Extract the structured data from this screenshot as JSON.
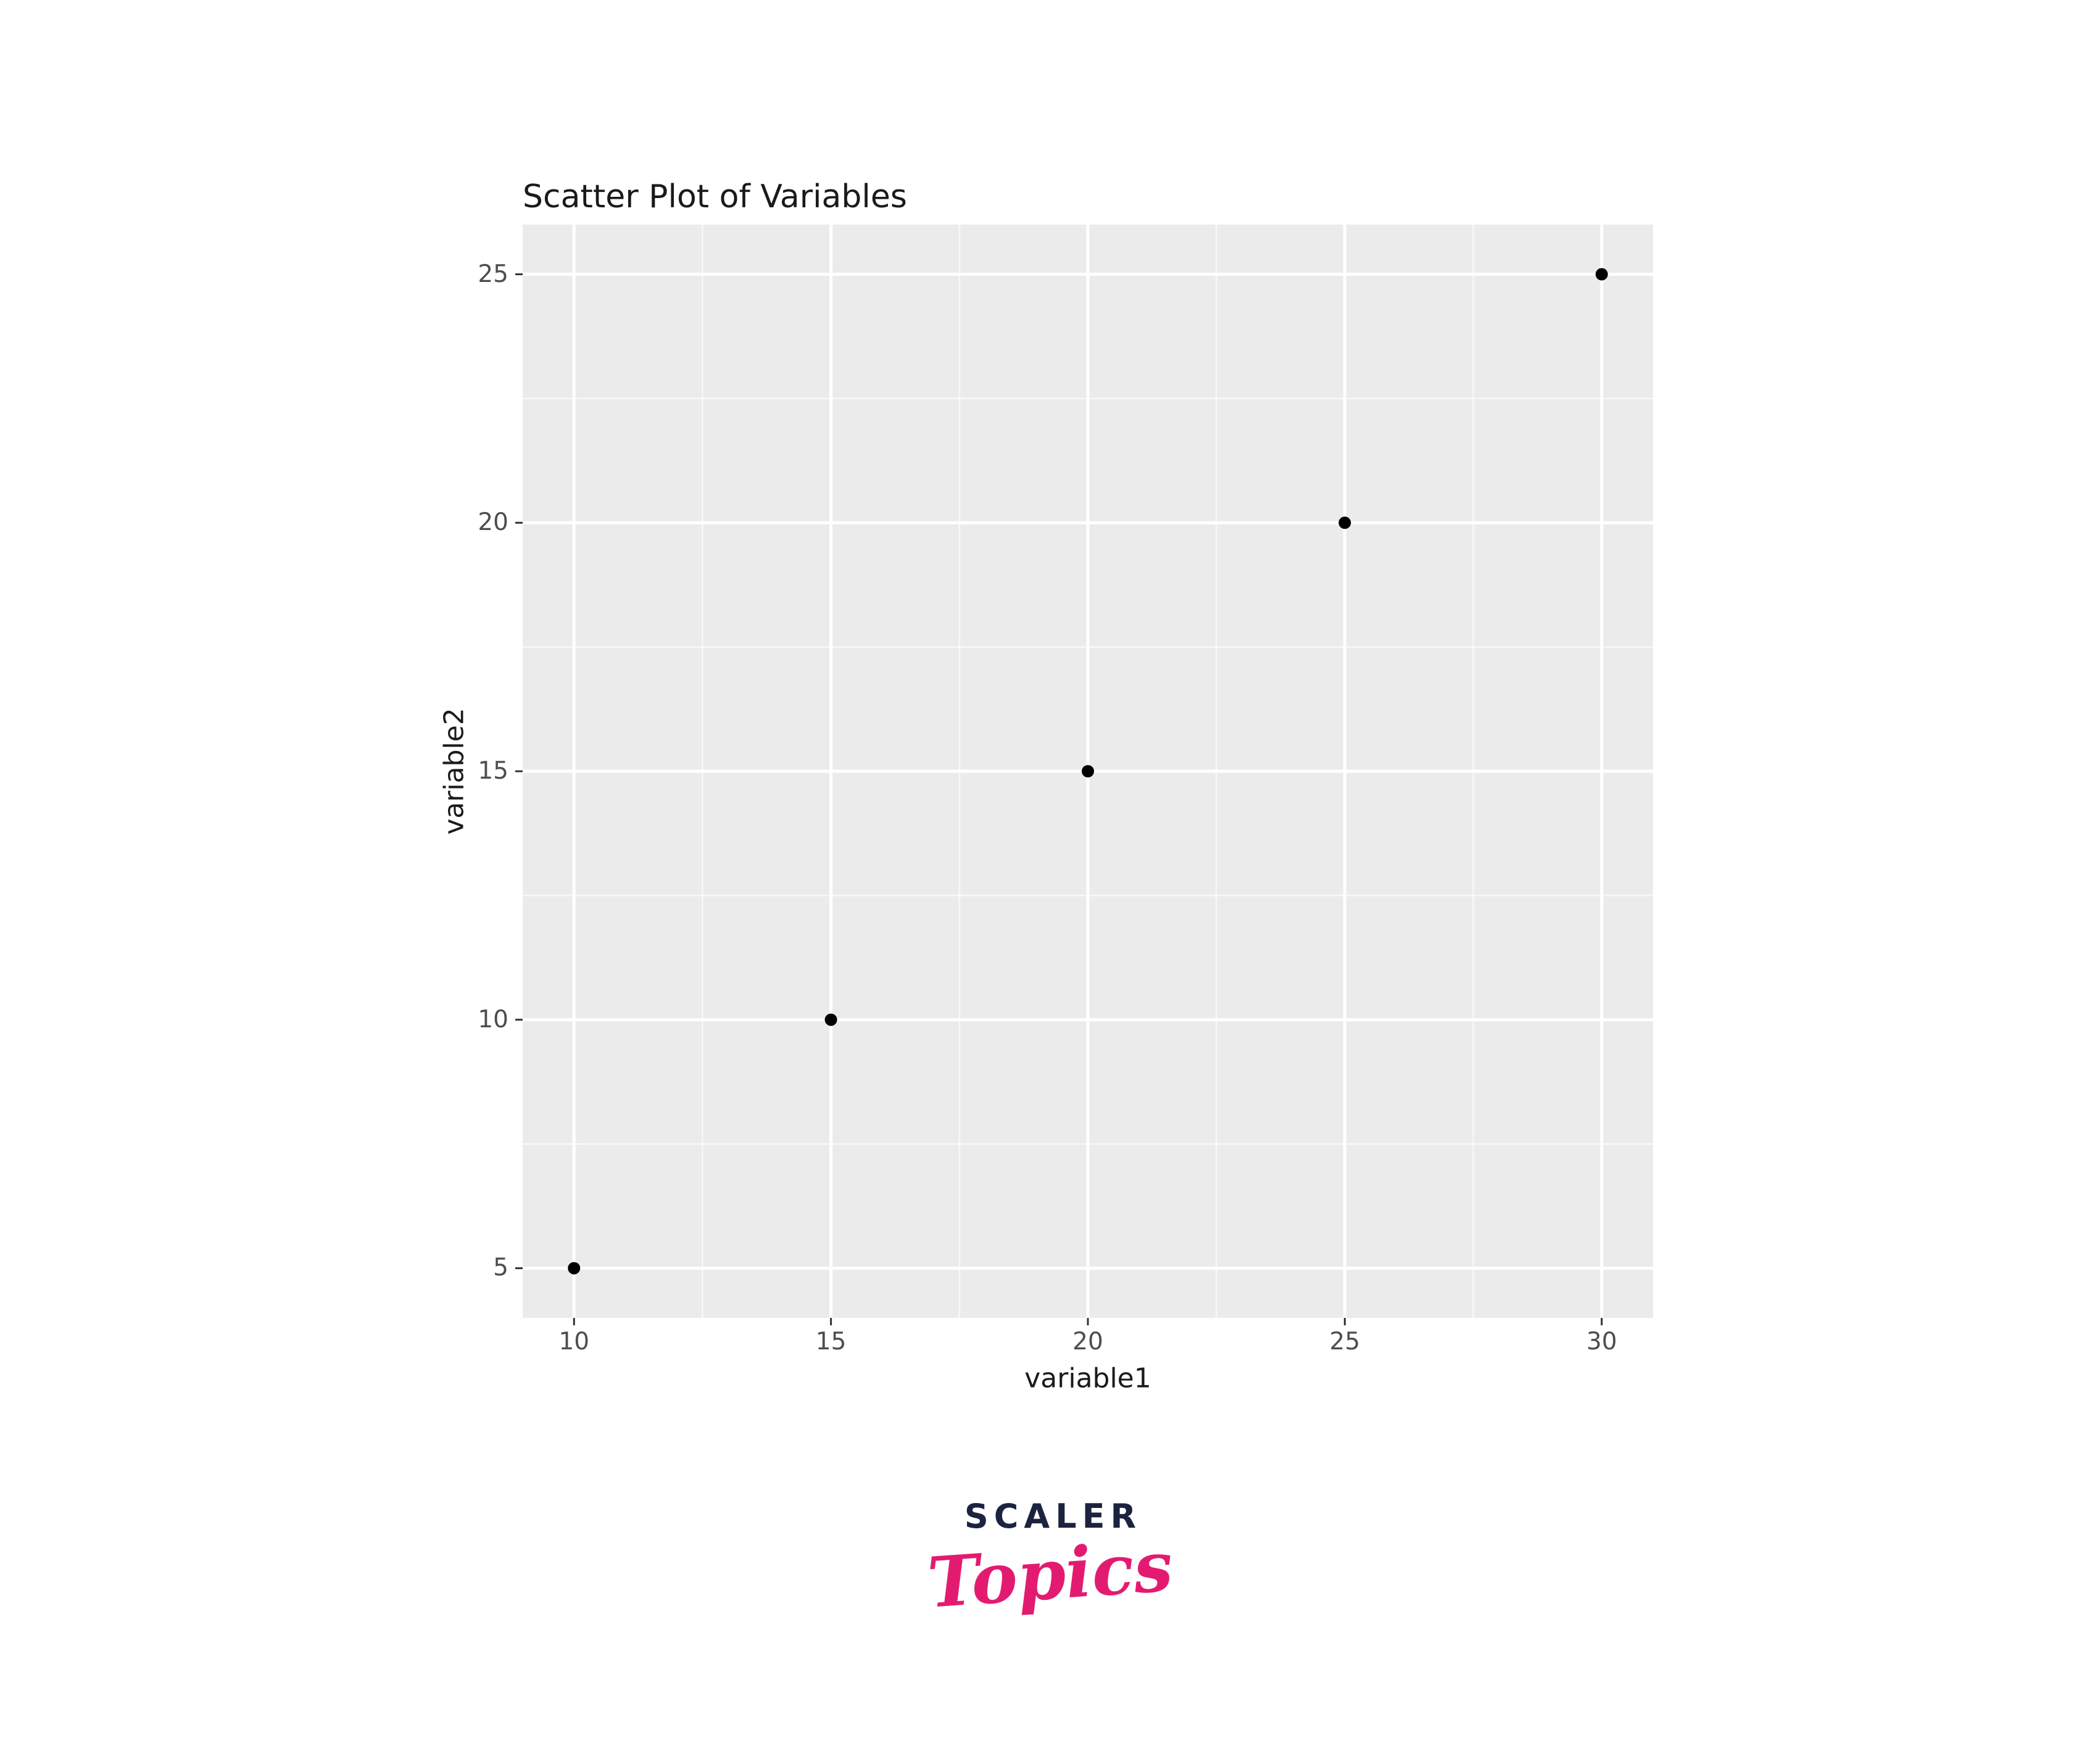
{
  "chart_data": {
    "type": "scatter",
    "title": "Scatter Plot of Variables",
    "xlabel": "variable1",
    "ylabel": "variable2",
    "x": [
      10,
      15,
      20,
      25,
      30
    ],
    "y": [
      5,
      10,
      15,
      20,
      25
    ],
    "x_ticks": [
      10,
      15,
      20,
      25,
      30
    ],
    "y_ticks": [
      5,
      10,
      15,
      20,
      25
    ],
    "xlim": [
      9,
      31
    ],
    "ylim": [
      4,
      26
    ],
    "grid": "major white lines with thinner white minor lines at tick midpoints, on gray panel",
    "legend_position": "none",
    "style": {
      "panel_bg": "#ebebeb",
      "grid_major_color": "#ffffff",
      "grid_minor_color": "#ffffff",
      "grid_minor_opacity": 0.65,
      "tick_mark_color": "#333333",
      "point_color": "#000000",
      "tick_label_color": "#4d4d4d",
      "axis_title_color": "#1a1a1a",
      "title_color": "#1a1a1a"
    }
  },
  "logo": {
    "brand": "SCALER",
    "script": "Topics",
    "brand_color": "#1b2340",
    "script_color": "#e31b70"
  }
}
